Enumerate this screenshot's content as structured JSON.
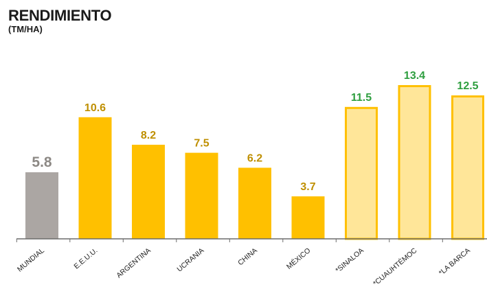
{
  "chart_data": {
    "type": "bar",
    "title": "RENDIMIENTO",
    "subtitle": "(TM/HA)",
    "categories": [
      "MUNDIAL",
      "E.E.U.U.",
      "ARGENTINA",
      "UCRANIA",
      "CHINA",
      "MÉXICO",
      "*SINALOA",
      "*CUAUHTÉMOC",
      "*LA BARCA"
    ],
    "values": [
      5.8,
      10.6,
      8.2,
      7.5,
      6.2,
      3.7,
      11.5,
      13.4,
      12.5
    ],
    "value_labels": [
      "5.8",
      "10.6",
      "8.2",
      "7.5",
      "6.2",
      "3.7",
      "11.5",
      "13.4",
      "12.5"
    ],
    "ylim": [
      0,
      13.4
    ],
    "grid": false,
    "legend": "none",
    "bar_styles": [
      {
        "fill": "#aba6a3",
        "stroke": "#aba6a3",
        "label_color": "#8d8985"
      },
      {
        "fill": "#ffc000",
        "stroke": "#ffc000",
        "label_color": "#bf8f00"
      },
      {
        "fill": "#ffc000",
        "stroke": "#ffc000",
        "label_color": "#bf8f00"
      },
      {
        "fill": "#ffc000",
        "stroke": "#ffc000",
        "label_color": "#bf8f00"
      },
      {
        "fill": "#ffc000",
        "stroke": "#ffc000",
        "label_color": "#bf8f00"
      },
      {
        "fill": "#ffc000",
        "stroke": "#ffc000",
        "label_color": "#bf8f00"
      },
      {
        "fill": "#ffe699",
        "stroke": "#ffc000",
        "label_color": "#2e9e3f"
      },
      {
        "fill": "#ffe699",
        "stroke": "#ffc000",
        "label_color": "#2e9e3f"
      },
      {
        "fill": "#ffe699",
        "stroke": "#ffc000",
        "label_color": "#2e9e3f"
      }
    ],
    "axis_color": "#6b6b6b"
  }
}
